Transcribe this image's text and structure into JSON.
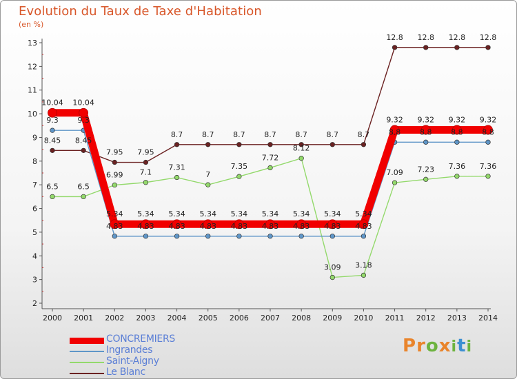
{
  "title": "Evolution du Taux de Taxe d'Habitation",
  "subtitle": "(en %)",
  "brand": "Proxiti",
  "brand_colors": [
    "#e9842b",
    "#e9842b",
    "#6db33f",
    "#e9842b",
    "#6db33f",
    "#3c8fd2",
    "#6db33f"
  ],
  "chart_data": {
    "type": "line",
    "xlabel": "",
    "ylabel": "",
    "ylim": [
      2,
      13
    ],
    "yticks": [
      2,
      3,
      4,
      5,
      6,
      7,
      8,
      9,
      10,
      11,
      12,
      13
    ],
    "x": [
      "2000",
      "2001",
      "2002",
      "2003",
      "2004",
      "2005",
      "2006",
      "2007",
      "2008",
      "2009",
      "2010",
      "2011",
      "2012",
      "2013",
      "2014"
    ],
    "legend_position": "bottom-left",
    "grid": false,
    "series": [
      {
        "name": "CONCREMIERS",
        "color": "#f10000",
        "values": [
          10.04,
          10.04,
          5.34,
          5.34,
          5.34,
          5.34,
          5.34,
          5.34,
          5.34,
          5.34,
          5.34,
          9.32,
          9.32,
          9.32,
          9.32
        ],
        "labels": [
          "10.04",
          "10.04",
          "5.34",
          "5.34",
          "5.34",
          "5.34",
          "5.34",
          "5.34",
          "5.34",
          "5.34",
          "5.34",
          "9.32",
          "9.32",
          "9.32",
          "9.32"
        ]
      },
      {
        "name": "Ingrandes",
        "color": "#5f96c8",
        "values": [
          9.3,
          9.3,
          4.83,
          4.83,
          4.83,
          4.83,
          4.83,
          4.83,
          4.83,
          4.83,
          4.83,
          8.8,
          8.8,
          8.8,
          8.8
        ],
        "labels": [
          "9.3",
          "9.3",
          "4.83",
          "4.83",
          "4.83",
          "4.83",
          "4.83",
          "4.83",
          "4.83",
          "4.83",
          "4.83",
          "8.8",
          "8.8",
          "8.8",
          "8.8"
        ]
      },
      {
        "name": "Saint-Aigny",
        "color": "#93d96b",
        "values": [
          6.5,
          6.5,
          6.99,
          7.1,
          7.31,
          7.0,
          7.35,
          7.72,
          8.12,
          3.09,
          3.18,
          7.09,
          7.23,
          7.36,
          7.36
        ],
        "labels": [
          "6.5",
          "6.5",
          "6.99",
          "7.1",
          "7.31",
          "7",
          "7.35",
          "7.72",
          "8.12",
          "3.09",
          "3.18",
          "7.09",
          "7.23",
          "7.36",
          "7.36"
        ]
      },
      {
        "name": "Le Blanc",
        "color": "#6b2222",
        "values": [
          8.45,
          8.45,
          7.95,
          7.95,
          8.7,
          8.7,
          8.7,
          8.7,
          8.7,
          8.7,
          8.7,
          12.8,
          12.8,
          12.8,
          12.8
        ],
        "labels": [
          "8.45",
          "8.45",
          "7.95",
          "7.95",
          "8.7",
          "8.7",
          "8.7",
          "8.7",
          "8.7",
          "8.7",
          "8.7",
          "12.8",
          "12.8",
          "12.8",
          "12.8"
        ]
      }
    ]
  }
}
